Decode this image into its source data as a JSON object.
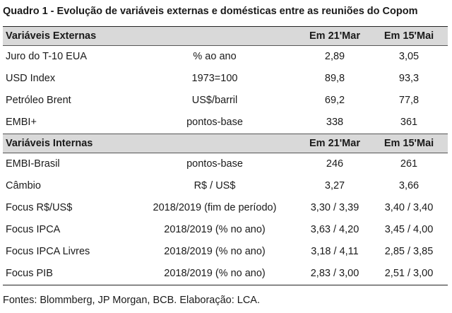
{
  "title": "Quadro 1 - Evolução de variáveis externas e domésticas entre as reuniões do Copom",
  "sections": [
    {
      "header": {
        "label": "Variáveis Externas",
        "col1": "Em 21'Mar",
        "col2": "Em 15'Mai"
      },
      "rows": [
        {
          "name": "Juro do T-10 EUA",
          "unit": "% ao ano",
          "v1": "2,89",
          "v2": "3,05"
        },
        {
          "name": "USD Index",
          "unit": "1973=100",
          "v1": "89,8",
          "v2": "93,3"
        },
        {
          "name": "Petróleo Brent",
          "unit": "US$/barril",
          "v1": "69,2",
          "v2": "77,8"
        },
        {
          "name": "EMBI+",
          "unit": "pontos-base",
          "v1": "338",
          "v2": "361"
        }
      ]
    },
    {
      "header": {
        "label": "Variáveis Internas",
        "col1": "Em 21'Mar",
        "col2": "Em 15'Mai"
      },
      "rows": [
        {
          "name": "EMBI-Brasil",
          "unit": "pontos-base",
          "v1": "246",
          "v2": "261"
        },
        {
          "name": "Câmbio",
          "unit": "R$ / US$",
          "v1": "3,27",
          "v2": "3,66"
        },
        {
          "name": "Focus R$/US$",
          "unit": "2018/2019 (fim de período)",
          "v1": "3,30 / 3,39",
          "v2": "3,40 / 3,40"
        },
        {
          "name": "Focus IPCA",
          "unit": "2018/2019 (% no ano)",
          "v1": "3,63 / 4,20",
          "v2": "3,45 / 4,00"
        },
        {
          "name": "Focus IPCA Livres",
          "unit": "2018/2019 (% no ano)",
          "v1": "3,18 / 4,11",
          "v2": "2,85 / 3,85"
        },
        {
          "name": "Focus PIB",
          "unit": "2018/2019 (% no ano)",
          "v1": "2,83 / 3,00",
          "v2": "2,51 / 3,00"
        }
      ]
    }
  ],
  "footer": "Fontes: Blommberg, JP Morgan, BCB. Elaboração: LCA."
}
